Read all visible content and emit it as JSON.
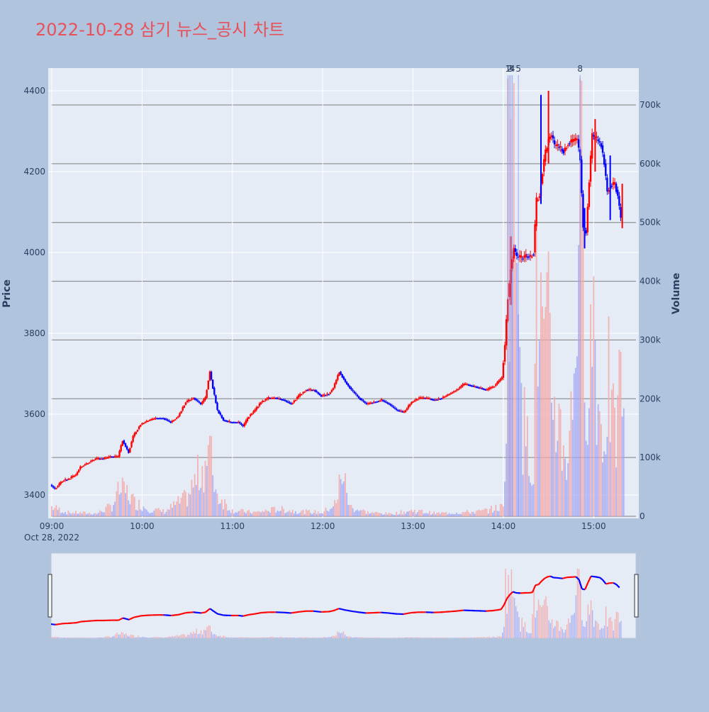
{
  "title": "2022-10-28 삼기 뉴스_공시 차트",
  "colors": {
    "background": "#b0c4de",
    "plot_bg": "#e5ecf6",
    "title": "#e8515a",
    "up": "#ff0000",
    "down": "#0000ff",
    "up_volume": "#f4a9a9",
    "down_volume": "#a3a9f4",
    "axis_text": "#2a3f5f"
  },
  "chart_data": {
    "type": "candlestick",
    "title": "2022-10-28 삼기 뉴스_공시 차트",
    "ylabel": "Price",
    "y2label": "Volume",
    "date_label": "Oct 28, 2022",
    "x_ticks": [
      "09:00",
      "10:00",
      "11:00",
      "12:00",
      "13:00",
      "14:00",
      "15:00"
    ],
    "y_ticks": [
      3400,
      3600,
      3800,
      4000,
      4200,
      4400
    ],
    "y2_ticks": [
      {
        "value": 0,
        "label": "0"
      },
      {
        "value": 100000,
        "label": "100k"
      },
      {
        "value": 200000,
        "label": "200k"
      },
      {
        "value": 300000,
        "label": "300k"
      },
      {
        "value": 400000,
        "label": "400k"
      },
      {
        "value": 500000,
        "label": "500k"
      },
      {
        "value": 600000,
        "label": "600k"
      },
      {
        "value": 700000,
        "label": "700k"
      }
    ],
    "ylim": [
      3340,
      4450
    ],
    "y2lim": [
      0,
      760000
    ],
    "xlim": [
      "09:00",
      "15:30"
    ],
    "news_markers": [
      {
        "time": "14:03",
        "label": "1"
      },
      {
        "time": "14:04",
        "label": "2"
      },
      {
        "time": "14:05",
        "label": "3"
      },
      {
        "time": "14:06",
        "label": "4"
      },
      {
        "time": "14:10",
        "label": "5"
      },
      {
        "time": "14:51",
        "label": "8"
      }
    ],
    "price_path": [
      [
        "09:00",
        3425
      ],
      [
        "09:03",
        3415
      ],
      [
        "09:08",
        3435
      ],
      [
        "09:12",
        3440
      ],
      [
        "09:17",
        3450
      ],
      [
        "09:20",
        3470
      ],
      [
        "09:25",
        3480
      ],
      [
        "09:30",
        3490
      ],
      [
        "09:35",
        3490
      ],
      [
        "09:40",
        3495
      ],
      [
        "09:45",
        3495
      ],
      [
        "09:48",
        3535
      ],
      [
        "09:52",
        3505
      ],
      [
        "09:55",
        3545
      ],
      [
        "10:00",
        3575
      ],
      [
        "10:05",
        3585
      ],
      [
        "10:10",
        3590
      ],
      [
        "10:15",
        3590
      ],
      [
        "10:20",
        3580
      ],
      [
        "10:25",
        3595
      ],
      [
        "10:30",
        3630
      ],
      [
        "10:35",
        3640
      ],
      [
        "10:40",
        3625
      ],
      [
        "10:43",
        3640
      ],
      [
        "10:46",
        3705
      ],
      [
        "10:48",
        3665
      ],
      [
        "10:51",
        3610
      ],
      [
        "10:55",
        3585
      ],
      [
        "11:00",
        3580
      ],
      [
        "11:05",
        3580
      ],
      [
        "11:08",
        3570
      ],
      [
        "11:12",
        3595
      ],
      [
        "11:16",
        3610
      ],
      [
        "11:20",
        3630
      ],
      [
        "11:25",
        3640
      ],
      [
        "11:30",
        3640
      ],
      [
        "11:35",
        3635
      ],
      [
        "11:40",
        3625
      ],
      [
        "11:45",
        3645
      ],
      [
        "11:50",
        3660
      ],
      [
        "11:55",
        3660
      ],
      [
        "12:00",
        3645
      ],
      [
        "12:05",
        3650
      ],
      [
        "12:08",
        3665
      ],
      [
        "12:12",
        3705
      ],
      [
        "12:16",
        3680
      ],
      [
        "12:20",
        3660
      ],
      [
        "12:25",
        3640
      ],
      [
        "12:30",
        3625
      ],
      [
        "12:35",
        3630
      ],
      [
        "12:40",
        3635
      ],
      [
        "12:45",
        3625
      ],
      [
        "12:50",
        3610
      ],
      [
        "12:55",
        3605
      ],
      [
        "13:00",
        3630
      ],
      [
        "13:05",
        3640
      ],
      [
        "13:10",
        3640
      ],
      [
        "13:15",
        3635
      ],
      [
        "13:20",
        3640
      ],
      [
        "13:25",
        3650
      ],
      [
        "13:30",
        3660
      ],
      [
        "13:35",
        3675
      ],
      [
        "13:40",
        3670
      ],
      [
        "13:45",
        3665
      ],
      [
        "13:50",
        3660
      ],
      [
        "13:55",
        3670
      ],
      [
        "14:00",
        3690
      ],
      [
        "14:02",
        3770
      ],
      [
        "14:04",
        3890
      ],
      [
        "14:06",
        3960
      ],
      [
        "14:08",
        4010
      ],
      [
        "14:10",
        3990
      ],
      [
        "14:13",
        3985
      ],
      [
        "14:16",
        3990
      ],
      [
        "14:19",
        3990
      ],
      [
        "14:21",
        4000
      ],
      [
        "14:23",
        4130
      ],
      [
        "14:25",
        4140
      ],
      [
        "14:27",
        4200
      ],
      [
        "14:29",
        4250
      ],
      [
        "14:31",
        4280
      ],
      [
        "14:33",
        4290
      ],
      [
        "14:35",
        4265
      ],
      [
        "14:38",
        4260
      ],
      [
        "14:41",
        4250
      ],
      [
        "14:44",
        4270
      ],
      [
        "14:47",
        4275
      ],
      [
        "14:50",
        4280
      ],
      [
        "14:52",
        4230
      ],
      [
        "14:54",
        4060
      ],
      [
        "14:56",
        4050
      ],
      [
        "14:58",
        4175
      ],
      [
        "15:00",
        4290
      ],
      [
        "15:03",
        4280
      ],
      [
        "15:06",
        4265
      ],
      [
        "15:08",
        4220
      ],
      [
        "15:10",
        4150
      ],
      [
        "15:12",
        4165
      ],
      [
        "15:15",
        4170
      ],
      [
        "15:17",
        4140
      ],
      [
        "15:19",
        4085
      ]
    ],
    "price_spikes": [
      {
        "time": "14:05",
        "low": 3870,
        "high": 4040
      },
      {
        "time": "14:25",
        "low": 4120,
        "high": 4390
      },
      {
        "time": "14:30",
        "low": 4220,
        "high": 4400
      },
      {
        "time": "14:54",
        "low": 4010,
        "high": 4110
      },
      {
        "time": "15:01",
        "low": 4200,
        "high": 4330
      },
      {
        "time": "15:11",
        "low": 4080,
        "high": 4240
      },
      {
        "time": "15:19",
        "low": 4060,
        "high": 4170
      }
    ],
    "volume_path": [
      [
        "09:00",
        20000
      ],
      [
        "09:10",
        8000
      ],
      [
        "09:30",
        6000
      ],
      [
        "09:40",
        22000
      ],
      [
        "09:45",
        55000
      ],
      [
        "09:50",
        50000
      ],
      [
        "09:55",
        30000
      ],
      [
        "10:05",
        15000
      ],
      [
        "10:15",
        10000
      ],
      [
        "10:30",
        40000
      ],
      [
        "10:45",
        135000
      ],
      [
        "10:50",
        45000
      ],
      [
        "11:00",
        12000
      ],
      [
        "11:15",
        8000
      ],
      [
        "11:30",
        15000
      ],
      [
        "11:45",
        10000
      ],
      [
        "12:00",
        8000
      ],
      [
        "12:10",
        30000
      ],
      [
        "12:12",
        110000
      ],
      [
        "12:18",
        20000
      ],
      [
        "12:30",
        8000
      ],
      [
        "12:45",
        5000
      ],
      [
        "13:00",
        12000
      ],
      [
        "13:15",
        6000
      ],
      [
        "13:30",
        8000
      ],
      [
        "13:45",
        10000
      ],
      [
        "14:00",
        20000
      ],
      [
        "14:02",
        250000
      ],
      [
        "14:03",
        745000
      ],
      [
        "14:05",
        745000
      ],
      [
        "14:06",
        720000
      ],
      [
        "14:08",
        550000
      ],
      [
        "14:10",
        745000
      ],
      [
        "14:13",
        200000
      ],
      [
        "14:16",
        150000
      ],
      [
        "14:20",
        120000
      ],
      [
        "14:22",
        440000
      ],
      [
        "14:25",
        400000
      ],
      [
        "14:28",
        300000
      ],
      [
        "14:30",
        380000
      ],
      [
        "14:33",
        250000
      ],
      [
        "14:38",
        180000
      ],
      [
        "14:42",
        120000
      ],
      [
        "14:46",
        230000
      ],
      [
        "14:51",
        745000
      ],
      [
        "14:54",
        380000
      ],
      [
        "14:57",
        300000
      ],
      [
        "15:00",
        450000
      ],
      [
        "15:03",
        240000
      ],
      [
        "15:06",
        160000
      ],
      [
        "15:10",
        280000
      ],
      [
        "15:14",
        150000
      ],
      [
        "15:18",
        280000
      ],
      [
        "15:20",
        230000
      ]
    ]
  }
}
